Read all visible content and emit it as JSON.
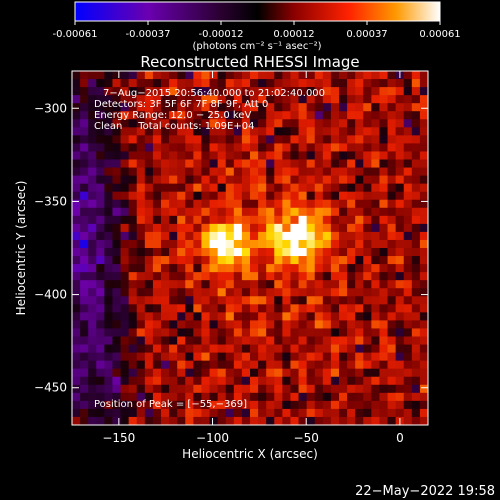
{
  "chart_data": {
    "type": "heatmap",
    "title": "Reconstructed RHESSI Image",
    "xlabel": "Heliocentric X (arcsec)",
    "ylabel": "Heliocentric Y (arcsec)",
    "xlim": [
      -175,
      15
    ],
    "ylim": [
      -470,
      -280
    ],
    "xticks": [
      -150,
      -100,
      -50,
      0
    ],
    "yticks": [
      -300,
      -350,
      -400,
      -450
    ],
    "colorbar": {
      "ticks": [
        "-0.00061",
        "-0.00037",
        "-0.00012",
        "0.00012",
        "0.00037",
        "0.00061"
      ],
      "units": "(photons cm⁻² s⁻¹ asec⁻²)",
      "colors": [
        "#0000ff",
        "#7a00b4",
        "#2a0033",
        "#000000",
        "#8b0000",
        "#ff2000",
        "#ff8c00",
        "#ffd400",
        "#ffffff"
      ]
    },
    "annotations": {
      "time": "7−Aug−2015 20:56:40.000 to 21:02:40.000",
      "detectors": "Detectors: 3F 5F 6F 7F 8F 9F, Att 0",
      "energy": "Energy Range: 12.0 − 25.0 keV",
      "method": "Clean     Total counts: 1.09E+04",
      "peak": "Position of Peak = [−55,−369]"
    },
    "sources": [
      {
        "x": -55,
        "y": -369,
        "peak": 1.0
      },
      {
        "x": -92,
        "y": -372,
        "peak": 0.82
      }
    ]
  },
  "footer": {
    "date": "22−May−2022 19:58"
  }
}
